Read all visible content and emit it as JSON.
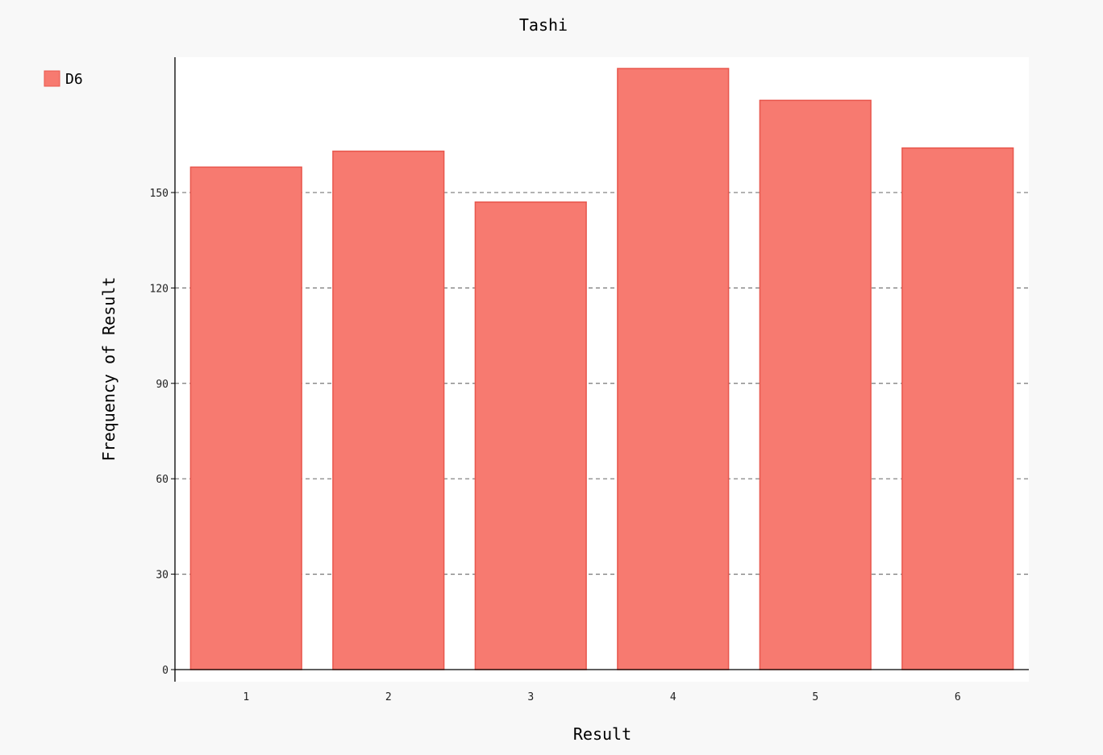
{
  "chart_data": {
    "type": "bar",
    "title": "Tashi",
    "xlabel": "Result",
    "ylabel": "Frequency of Result",
    "categories": [
      "1",
      "2",
      "3",
      "4",
      "5",
      "6"
    ],
    "series": [
      {
        "name": "D6",
        "values": [
          158,
          163,
          147,
          189,
          179,
          164
        ]
      }
    ],
    "ylim": [
      0,
      190
    ],
    "yticks": [
      0,
      30,
      60,
      90,
      120,
      150
    ],
    "grid": "horizontal-dashed",
    "legend": "top-left",
    "colors": {
      "bar_fill": "#f77a70",
      "bar_stroke": "#e8574d",
      "plot_background": "#ffffff",
      "page_background": "#f8f8f8"
    }
  }
}
